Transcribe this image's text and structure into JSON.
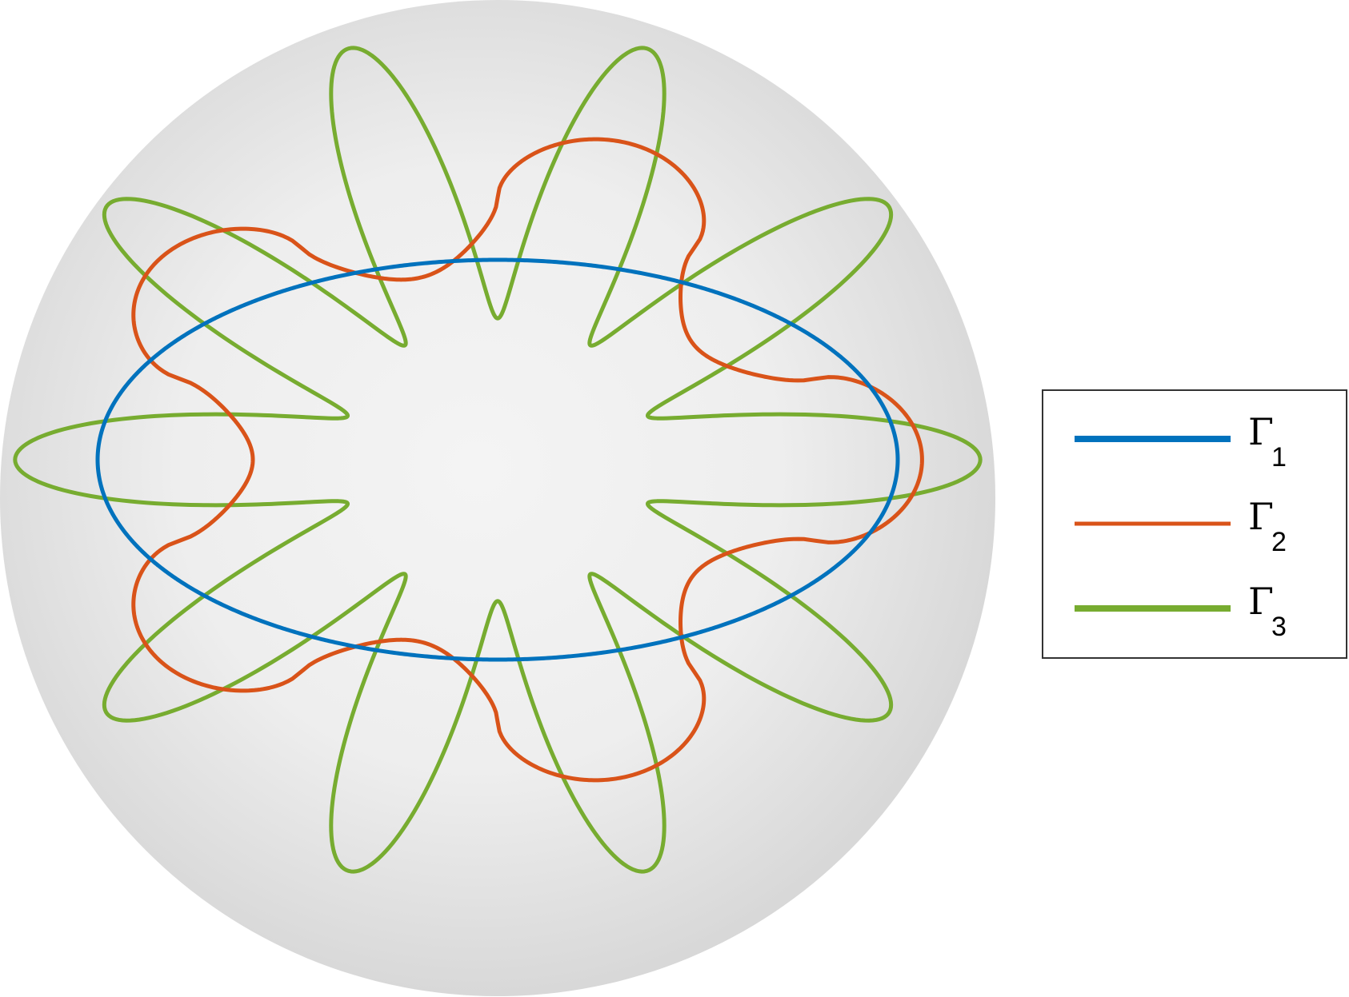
{
  "figure": {
    "sphere": {
      "fill_center": "#f4f4f4",
      "fill_edge": "#d6d6d6"
    },
    "curves": [
      {
        "id": "gamma1",
        "symbol": "Γ",
        "subscript": "1",
        "color": "#0072BD",
        "shape": "ellipse",
        "lobes": 0
      },
      {
        "id": "gamma2",
        "symbol": "Γ",
        "subscript": "2",
        "color": "#D95319",
        "shape": "wavy-loop",
        "lobes": 5
      },
      {
        "id": "gamma3",
        "symbol": "Γ",
        "subscript": "3",
        "color": "#77AC30",
        "shape": "petal-loop",
        "lobes": 10
      }
    ]
  },
  "legend": {
    "entries": [
      {
        "symbol": "Γ",
        "subscript": "1",
        "color": "#0072BD"
      },
      {
        "symbol": "Γ",
        "subscript": "2",
        "color": "#D95319"
      },
      {
        "symbol": "Γ",
        "subscript": "3",
        "color": "#77AC30"
      }
    ]
  }
}
